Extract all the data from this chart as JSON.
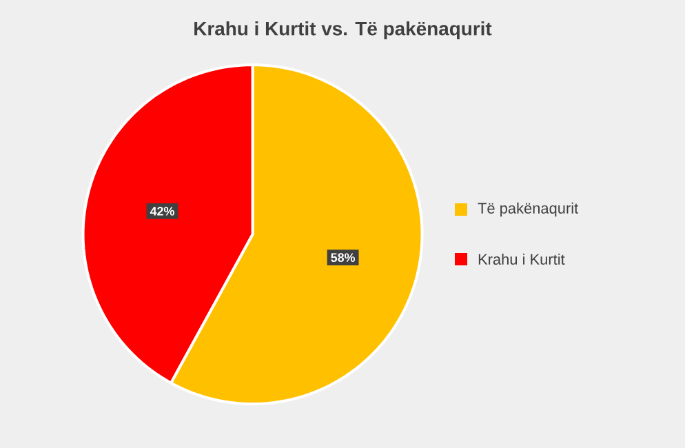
{
  "chart_data": {
    "type": "pie",
    "title": "Krahu i Kurtit vs. Të pakënaqurit",
    "categories": [
      "Të pakënaqurit",
      "Krahu i Kurtit"
    ],
    "values": [
      58,
      42
    ],
    "colors": [
      "#ffc000",
      "#ff0000"
    ],
    "value_labels": [
      "58%",
      "42%"
    ],
    "legend": "right"
  }
}
